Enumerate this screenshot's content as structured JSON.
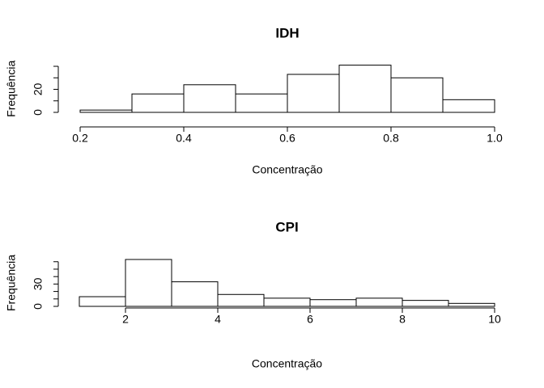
{
  "chart_data": [
    {
      "type": "histogram",
      "title": "IDH",
      "xlabel": "Concentração",
      "ylabel": "Frequência",
      "bins": [
        0.2,
        0.3,
        0.4,
        0.5,
        0.6,
        0.7,
        0.8,
        0.9,
        1.0
      ],
      "counts": [
        2,
        16,
        24,
        16,
        33,
        41,
        30,
        11
      ],
      "xlim": [
        0.2,
        1.0
      ],
      "xticks": [
        0.2,
        0.4,
        0.6,
        0.8,
        {
          "value": 1.0,
          "label": "1.0"
        }
      ],
      "ylim": [
        0,
        41
      ],
      "yticks": [
        0,
        20
      ],
      "yminorticks": [
        10,
        30,
        40
      ],
      "color": "#ffffff"
    },
    {
      "type": "histogram",
      "title": "CPI",
      "xlabel": "Concentração",
      "ylabel": "Frequência",
      "bins": [
        1,
        2,
        3,
        4,
        5,
        6,
        7,
        8,
        9,
        10
      ],
      "counts": [
        13,
        63,
        33,
        16,
        11,
        9,
        11,
        8,
        4
      ],
      "xlim": [
        1,
        10
      ],
      "xticks": [
        2,
        4,
        6,
        8,
        10
      ],
      "ylim": [
        0,
        63
      ],
      "yticks": [
        0,
        30
      ],
      "yminorticks": [
        10,
        20,
        40,
        50,
        60
      ],
      "color": "#ffffff"
    }
  ]
}
